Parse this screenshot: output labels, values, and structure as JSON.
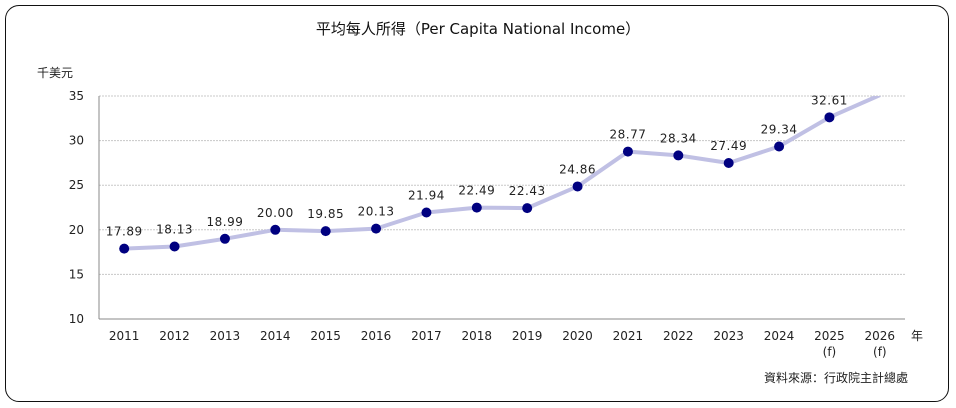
{
  "chart_data": {
    "type": "line",
    "title": "平均每人所得（Per Capita National Income）",
    "ylabel": "千美元",
    "xlabel": "年",
    "source": "資料來源：行政院主計總處",
    "ylim": [
      10,
      35
    ],
    "yticks": [
      "10",
      "15",
      "20",
      "25",
      "30",
      "35"
    ],
    "grid": true,
    "categories": [
      "2011",
      "2012",
      "2013",
      "2014",
      "2015",
      "2016",
      "2017",
      "2018",
      "2019",
      "2020",
      "2021",
      "2022",
      "2023",
      "2024",
      "2025",
      "2026"
    ],
    "category_notes": [
      "",
      "",
      "",
      "",
      "",
      "",
      "",
      "",
      "",
      "",
      "",
      "",
      "",
      "",
      "(f)",
      "(f)"
    ],
    "series": [
      {
        "name": "Per Capita National Income",
        "values": [
          17.89,
          18.13,
          18.99,
          20.0,
          19.85,
          20.13,
          21.94,
          22.49,
          22.43,
          24.86,
          28.77,
          28.34,
          27.49,
          29.34,
          32.61,
          35.1
        ],
        "labels": [
          "17.89",
          "18.13",
          "18.99",
          "20.00",
          "19.85",
          "20.13",
          "21.94",
          "22.49",
          "22.43",
          "24.86",
          "28.77",
          "28.34",
          "27.49",
          "29.34",
          "32.61",
          null
        ]
      }
    ],
    "colors": {
      "line": "#c0c0e4",
      "marker": "#000080",
      "grid": "#c8c8c8"
    }
  }
}
